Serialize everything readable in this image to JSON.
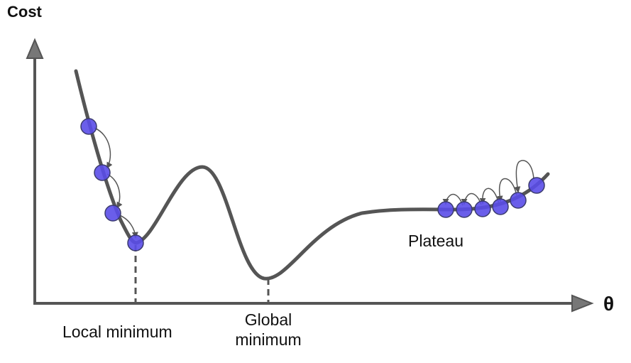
{
  "y_axis_label": "Cost",
  "x_axis_label": "θ",
  "annotations": {
    "local_minimum": "Local minimum",
    "global_minimum_line1": "Global",
    "global_minimum_line2": "minimum",
    "plateau": "Plateau"
  },
  "colors": {
    "curve": "#555555",
    "axis": "#555555",
    "ball_fill": "#5a4de8",
    "ball_stroke": "#3b3b6e",
    "arrow": "#555555"
  }
}
